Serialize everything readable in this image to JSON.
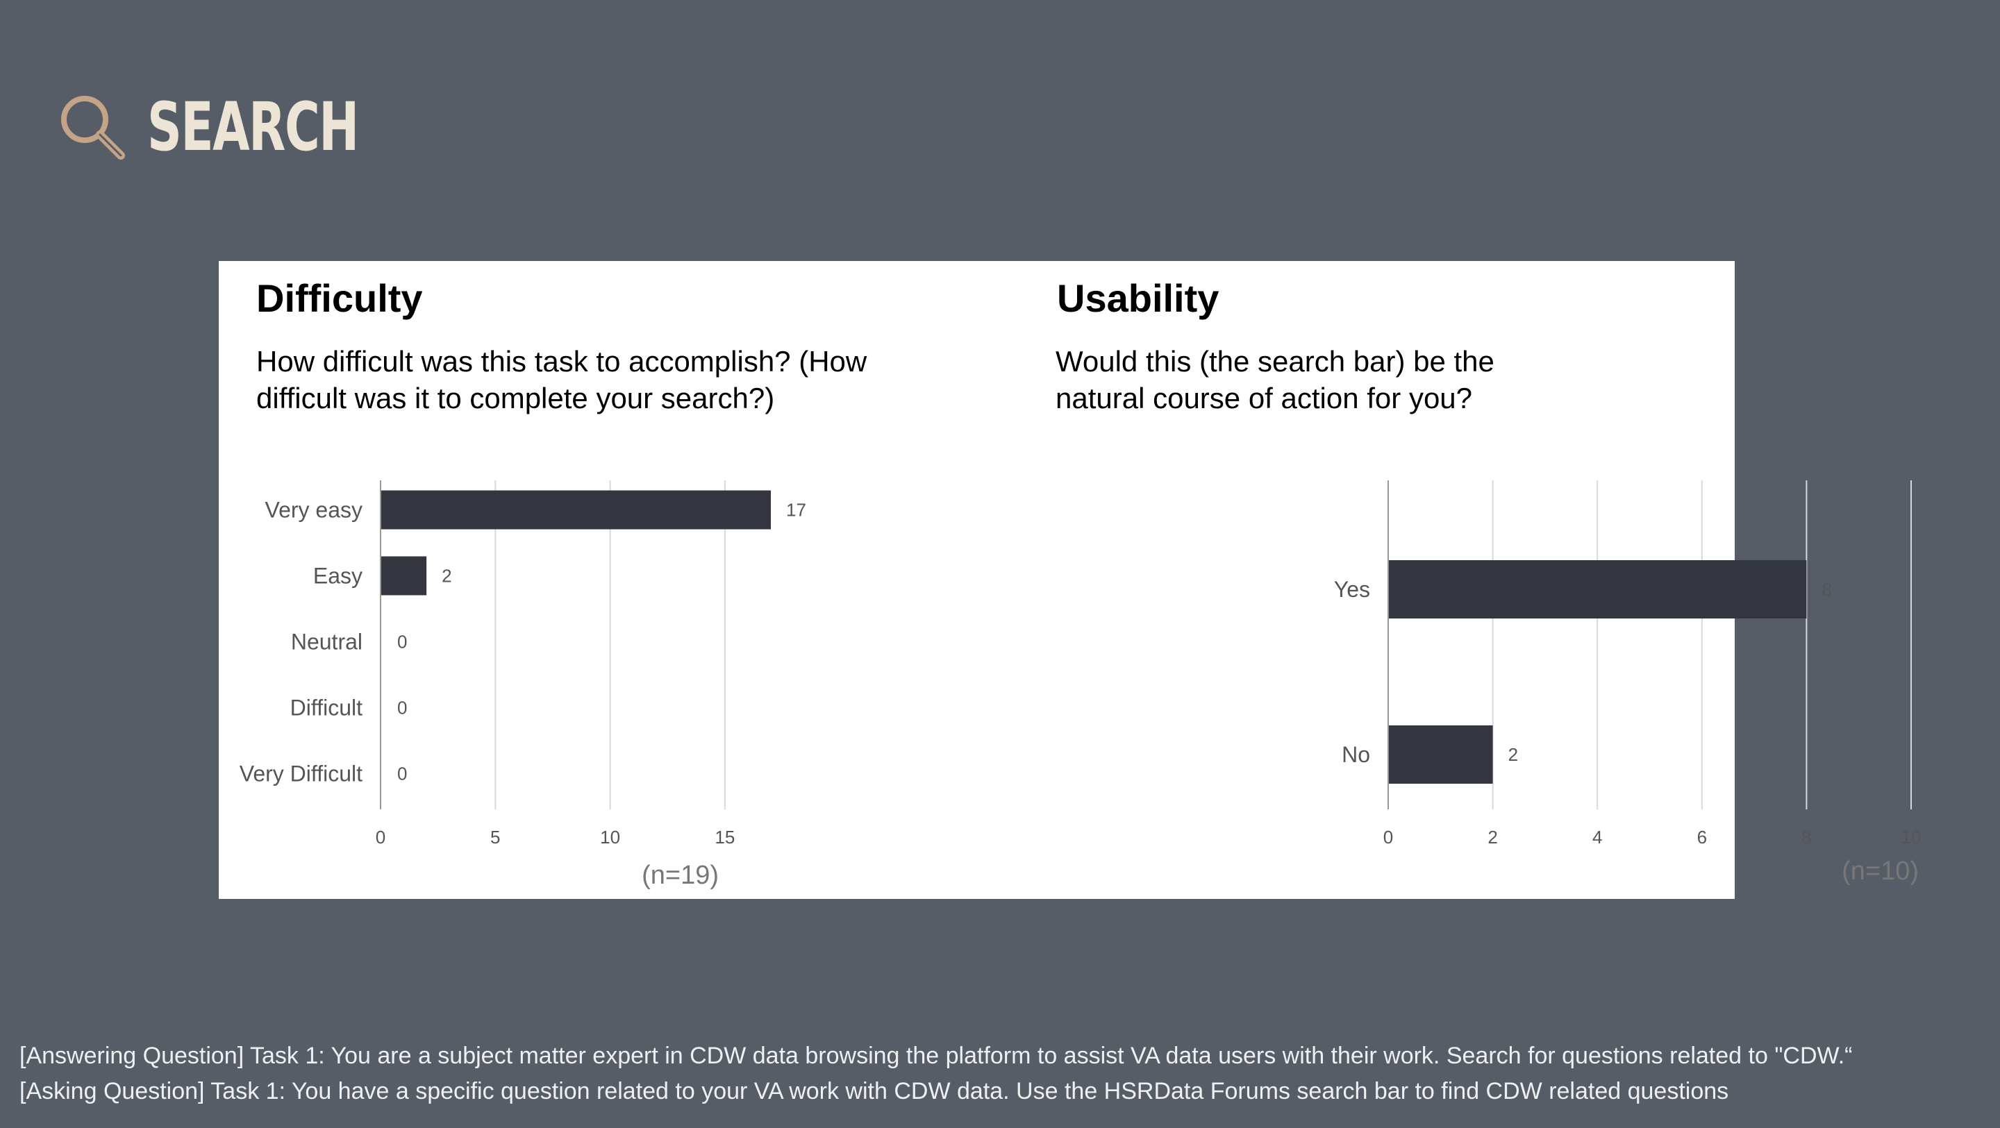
{
  "header": {
    "title": "SEARCH",
    "icon": "magnifying-glass-icon",
    "icon_color": "#c4a487",
    "title_color": "#ece4d5",
    "background": "#565d66"
  },
  "chart_data": [
    {
      "type": "bar",
      "orientation": "horizontal",
      "title": "Difficulty",
      "subtitle": "How difficult was this task to accomplish? (How difficult was it to complete your search?)",
      "categories": [
        "Very easy",
        "Easy",
        "Neutral",
        "Difficult",
        "Very Difficult"
      ],
      "values": [
        17,
        2,
        0,
        0,
        0
      ],
      "xlim": [
        0,
        17
      ],
      "xticks": [
        0,
        5,
        10,
        15
      ],
      "grid": true,
      "bar_color": "#33353f",
      "note": "(n=19)"
    },
    {
      "type": "bar",
      "orientation": "horizontal",
      "title": "Usability",
      "subtitle": "Would this (the search bar)  be the natural course of action for you?",
      "categories": [
        "Yes",
        "No"
      ],
      "values": [
        8,
        2
      ],
      "xlim": [
        0,
        10
      ],
      "xticks": [
        0,
        2,
        4,
        6,
        8,
        10
      ],
      "grid": true,
      "bar_color": "#33353f",
      "note": "(n=10)"
    }
  ],
  "footer": {
    "lines": [
      "[Answering Question] Task 1: You are a subject matter expert in CDW data browsing the platform to assist VA data users with their work. Search for questions related to \"CDW.“",
      "[Asking Question] Task 1: You have a specific question related to your VA work with CDW data. Use the HSRData Forums search bar to find CDW related questions"
    ]
  }
}
